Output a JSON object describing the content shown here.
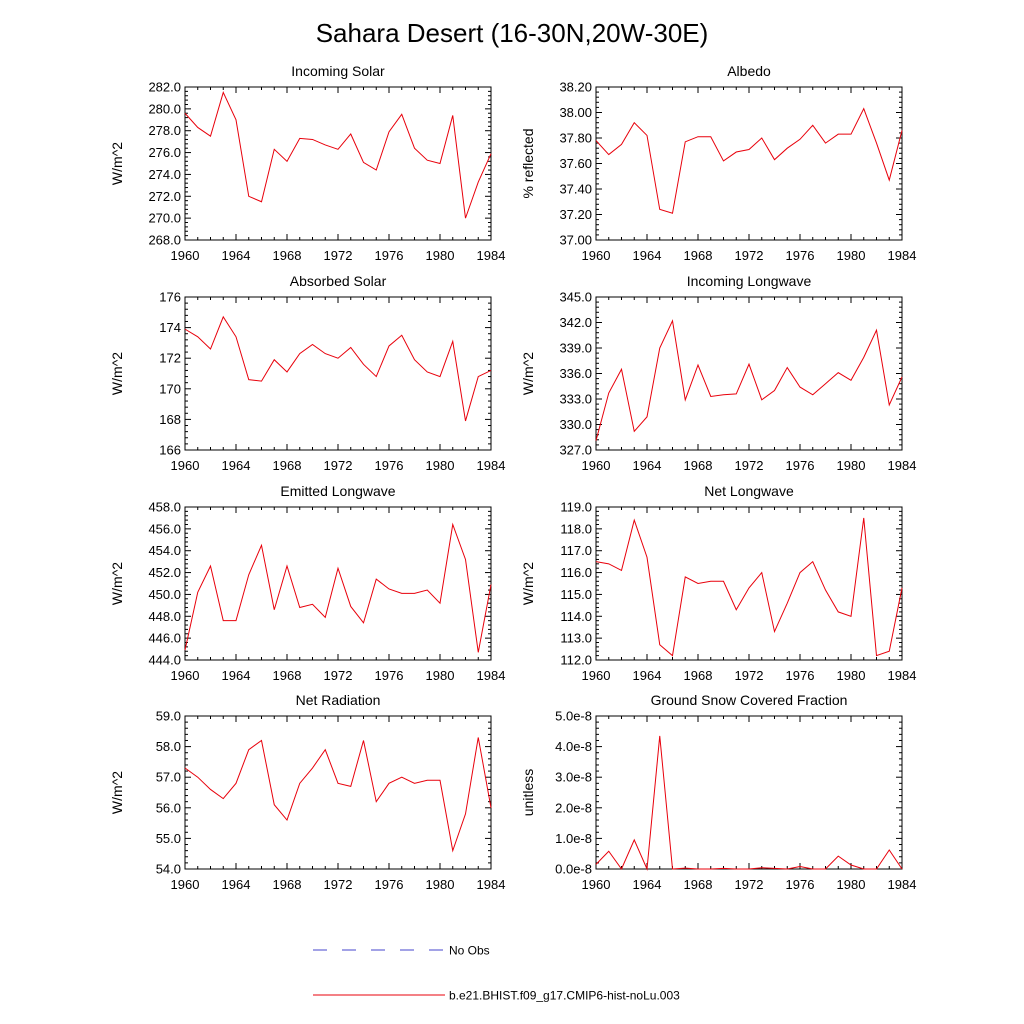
{
  "title": "Sahara Desert (16-30N,20W-30E)",
  "legend": {
    "items": [
      {
        "label": "No Obs",
        "color": "#4444cc",
        "dash": true
      },
      {
        "label": "b.e21.BHIST.f09_g17.CMIP6-hist-noLu.003",
        "color": "#e8000b",
        "dash": false
      }
    ]
  },
  "chart_data": [
    {
      "type": "line",
      "title": "Incoming Solar",
      "ylabel": "W/m^2",
      "xlim": [
        1960,
        1984
      ],
      "ylim": [
        268.0,
        282.0
      ],
      "xticks": [
        "1960",
        "1964",
        "1968",
        "1972",
        "1976",
        "1980",
        "1984"
      ],
      "yticks": [
        "268.0",
        "270.0",
        "272.0",
        "274.0",
        "276.0",
        "278.0",
        "280.0",
        "282.0"
      ],
      "x": [
        1960,
        1961,
        1962,
        1963,
        1964,
        1965,
        1966,
        1967,
        1968,
        1969,
        1970,
        1971,
        1972,
        1973,
        1974,
        1975,
        1976,
        1977,
        1978,
        1979,
        1980,
        1981,
        1982,
        1983,
        1984
      ],
      "series": [
        {
          "name": "b.e21.BHIST.f09_g17.CMIP6-hist-noLu.003",
          "color": "#e8000b",
          "values": [
            279.6,
            278.3,
            277.5,
            281.5,
            279.0,
            272.0,
            271.5,
            276.3,
            275.2,
            277.3,
            277.2,
            276.7,
            276.3,
            277.7,
            275.1,
            274.4,
            277.9,
            279.5,
            276.4,
            275.3,
            275.0,
            279.4,
            270.0,
            273.3,
            275.9
          ]
        }
      ]
    },
    {
      "type": "line",
      "title": "Albedo",
      "ylabel": "% reflected",
      "xlim": [
        1960,
        1984
      ],
      "ylim": [
        37.0,
        38.2
      ],
      "xticks": [
        "1960",
        "1964",
        "1968",
        "1972",
        "1976",
        "1980",
        "1984"
      ],
      "yticks": [
        "37.00",
        "37.20",
        "37.40",
        "37.60",
        "37.80",
        "38.00",
        "38.20"
      ],
      "x": [
        1960,
        1961,
        1962,
        1963,
        1964,
        1965,
        1966,
        1967,
        1968,
        1969,
        1970,
        1971,
        1972,
        1973,
        1974,
        1975,
        1976,
        1977,
        1978,
        1979,
        1980,
        1981,
        1982,
        1983,
        1984
      ],
      "series": [
        {
          "name": "b.e21.BHIST.f09_g17.CMIP6-hist-noLu.003",
          "color": "#e8000b",
          "values": [
            37.78,
            37.67,
            37.75,
            37.92,
            37.82,
            37.24,
            37.21,
            37.77,
            37.81,
            37.81,
            37.62,
            37.69,
            37.71,
            37.8,
            37.63,
            37.72,
            37.79,
            37.9,
            37.76,
            37.83,
            37.83,
            38.03,
            37.76,
            37.47,
            37.86
          ]
        }
      ]
    },
    {
      "type": "line",
      "title": "Absorbed Solar",
      "ylabel": "W/m^2",
      "xlim": [
        1960,
        1984
      ],
      "ylim": [
        166,
        176
      ],
      "xticks": [
        "1960",
        "1964",
        "1968",
        "1972",
        "1976",
        "1980",
        "1984"
      ],
      "yticks": [
        "166",
        "168",
        "170",
        "172",
        "174",
        "176"
      ],
      "x": [
        1960,
        1961,
        1962,
        1963,
        1964,
        1965,
        1966,
        1967,
        1968,
        1969,
        1970,
        1971,
        1972,
        1973,
        1974,
        1975,
        1976,
        1977,
        1978,
        1979,
        1980,
        1981,
        1982,
        1983,
        1984
      ],
      "series": [
        {
          "name": "b.e21.BHIST.f09_g17.CMIP6-hist-noLu.003",
          "color": "#e8000b",
          "values": [
            173.9,
            173.4,
            172.6,
            174.7,
            173.4,
            170.6,
            170.5,
            171.9,
            171.1,
            172.3,
            172.9,
            172.3,
            172.0,
            172.7,
            171.6,
            170.8,
            172.8,
            173.5,
            171.9,
            171.1,
            170.8,
            173.1,
            167.9,
            170.8,
            171.2
          ]
        }
      ]
    },
    {
      "type": "line",
      "title": "Incoming Longwave",
      "ylabel": "W/m^2",
      "xlim": [
        1960,
        1984
      ],
      "ylim": [
        327.0,
        345.0
      ],
      "xticks": [
        "1960",
        "1964",
        "1968",
        "1972",
        "1976",
        "1980",
        "1984"
      ],
      "yticks": [
        "327.0",
        "330.0",
        "333.0",
        "336.0",
        "339.0",
        "342.0",
        "345.0"
      ],
      "x": [
        1960,
        1961,
        1962,
        1963,
        1964,
        1965,
        1966,
        1967,
        1968,
        1969,
        1970,
        1971,
        1972,
        1973,
        1974,
        1975,
        1976,
        1977,
        1978,
        1979,
        1980,
        1981,
        1982,
        1983,
        1984
      ],
      "series": [
        {
          "name": "b.e21.BHIST.f09_g17.CMIP6-hist-noLu.003",
          "color": "#e8000b",
          "values": [
            328.1,
            333.7,
            336.5,
            329.2,
            330.9,
            339.0,
            342.2,
            332.9,
            337.0,
            333.3,
            333.5,
            333.6,
            337.1,
            332.9,
            334.0,
            336.7,
            334.4,
            333.5,
            334.8,
            336.1,
            335.2,
            337.9,
            341.1,
            332.3,
            335.6
          ]
        }
      ]
    },
    {
      "type": "line",
      "title": "Emitted Longwave",
      "ylabel": "W/m^2",
      "xlim": [
        1960,
        1984
      ],
      "ylim": [
        444.0,
        458.0
      ],
      "xticks": [
        "1960",
        "1964",
        "1968",
        "1972",
        "1976",
        "1980",
        "1984"
      ],
      "yticks": [
        "444.0",
        "446.0",
        "448.0",
        "450.0",
        "452.0",
        "454.0",
        "456.0",
        "458.0"
      ],
      "x": [
        1960,
        1961,
        1962,
        1963,
        1964,
        1965,
        1966,
        1967,
        1968,
        1969,
        1970,
        1971,
        1972,
        1973,
        1974,
        1975,
        1976,
        1977,
        1978,
        1979,
        1980,
        1981,
        1982,
        1983,
        1984
      ],
      "series": [
        {
          "name": "b.e21.BHIST.f09_g17.CMIP6-hist-noLu.003",
          "color": "#e8000b",
          "values": [
            444.9,
            450.2,
            452.6,
            447.6,
            447.6,
            451.8,
            454.5,
            448.6,
            452.6,
            448.8,
            449.1,
            447.9,
            452.4,
            448.9,
            447.4,
            451.4,
            450.5,
            450.1,
            450.1,
            450.4,
            449.2,
            456.4,
            453.2,
            444.7,
            450.9
          ]
        }
      ]
    },
    {
      "type": "line",
      "title": "Net Longwave",
      "ylabel": "W/m^2",
      "xlim": [
        1960,
        1984
      ],
      "ylim": [
        112.0,
        119.0
      ],
      "xticks": [
        "1960",
        "1964",
        "1968",
        "1972",
        "1976",
        "1980",
        "1984"
      ],
      "yticks": [
        "112.0",
        "113.0",
        "114.0",
        "115.0",
        "116.0",
        "117.0",
        "118.0",
        "119.0"
      ],
      "x": [
        1960,
        1961,
        1962,
        1963,
        1964,
        1965,
        1966,
        1967,
        1968,
        1969,
        1970,
        1971,
        1972,
        1973,
        1974,
        1975,
        1976,
        1977,
        1978,
        1979,
        1980,
        1981,
        1982,
        1983,
        1984
      ],
      "series": [
        {
          "name": "b.e21.BHIST.f09_g17.CMIP6-hist-noLu.003",
          "color": "#e8000b",
          "values": [
            116.5,
            116.4,
            116.1,
            118.4,
            116.7,
            112.7,
            112.2,
            115.8,
            115.5,
            115.6,
            115.6,
            114.3,
            115.3,
            116.0,
            113.3,
            114.6,
            116.0,
            116.5,
            115.2,
            114.2,
            114.0,
            118.5,
            112.2,
            112.4,
            115.3
          ]
        }
      ]
    },
    {
      "type": "line",
      "title": "Net Radiation",
      "ylabel": "W/m^2",
      "xlim": [
        1960,
        1984
      ],
      "ylim": [
        54.0,
        59.0
      ],
      "xticks": [
        "1960",
        "1964",
        "1968",
        "1972",
        "1976",
        "1980",
        "1984"
      ],
      "yticks": [
        "54.0",
        "55.0",
        "56.0",
        "57.0",
        "58.0",
        "59.0"
      ],
      "x": [
        1960,
        1961,
        1962,
        1963,
        1964,
        1965,
        1966,
        1967,
        1968,
        1969,
        1970,
        1971,
        1972,
        1973,
        1974,
        1975,
        1976,
        1977,
        1978,
        1979,
        1980,
        1981,
        1982,
        1983,
        1984
      ],
      "series": [
        {
          "name": "b.e21.BHIST.f09_g17.CMIP6-hist-noLu.003",
          "color": "#e8000b",
          "values": [
            57.3,
            57.0,
            56.6,
            56.3,
            56.8,
            57.9,
            58.2,
            56.1,
            55.6,
            56.8,
            57.3,
            57.9,
            56.8,
            56.7,
            58.2,
            56.2,
            56.8,
            57.0,
            56.8,
            56.9,
            56.9,
            54.6,
            55.8,
            58.3,
            56.0
          ]
        }
      ]
    },
    {
      "type": "line",
      "title": "Ground Snow Covered Fraction",
      "ylabel": "unitless",
      "xlim": [
        1960,
        1984
      ],
      "ylim": [
        0.0,
        5e-08
      ],
      "xticks": [
        "1960",
        "1964",
        "1968",
        "1972",
        "1976",
        "1980",
        "1984"
      ],
      "yticks": [
        "0.0e-8",
        "1.0e-8",
        "2.0e-8",
        "3.0e-8",
        "4.0e-8",
        "5.0e-8"
      ],
      "x": [
        1960,
        1961,
        1962,
        1963,
        1964,
        1965,
        1966,
        1967,
        1968,
        1969,
        1970,
        1971,
        1972,
        1973,
        1974,
        1975,
        1976,
        1977,
        1978,
        1979,
        1980,
        1981,
        1982,
        1983,
        1984
      ],
      "series": [
        {
          "name": "b.e21.BHIST.f09_g17.CMIP6-hist-noLu.003",
          "color": "#e8000b",
          "values": [
            1.5e-09,
            5.8e-09,
            0.0,
            9.5e-09,
            0.0,
            4.35e-08,
            0.0,
            3e-10,
            0.0,
            0.0,
            2e-10,
            0.0,
            0.0,
            4e-10,
            2e-10,
            0.0,
            8e-10,
            0.0,
            0.0,
            4.2e-09,
            1.3e-09,
            0.0,
            0.0,
            6.2e-09,
            0.0
          ]
        }
      ]
    }
  ]
}
